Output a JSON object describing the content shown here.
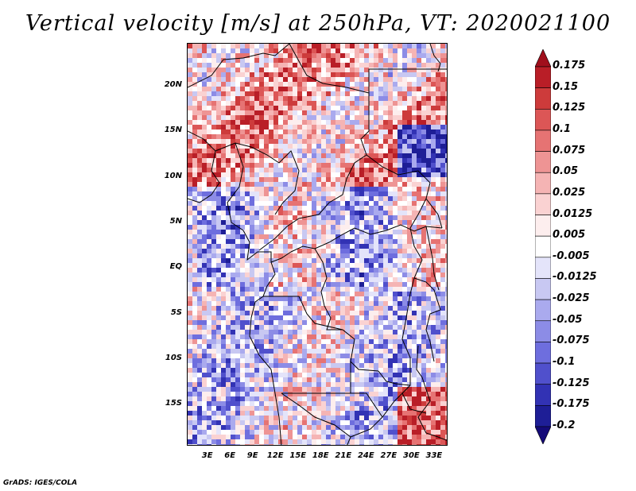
{
  "title": "Vertical velocity [m/s] at 250hPa, VT: 2020021100",
  "credit": "GrADS: IGES/COLA",
  "map": {
    "lat_labels": [
      "20N",
      "15N",
      "10N",
      "5N",
      "EQ",
      "5S",
      "10S",
      "15S"
    ],
    "lon_labels": [
      "3E",
      "6E",
      "9E",
      "12E",
      "15E",
      "18E",
      "21E",
      "24E",
      "27E",
      "30E",
      "33E"
    ],
    "lat_values": [
      20,
      15,
      10,
      5,
      0,
      -5,
      -10,
      -15
    ],
    "lon_values": [
      3,
      6,
      9,
      12,
      15,
      18,
      21,
      24,
      27,
      30,
      33
    ],
    "lon_range": [
      0.3,
      34.8
    ],
    "lat_range": [
      -19.5,
      24.7
    ]
  },
  "colorbar": {
    "labels": [
      "0.175",
      "0.15",
      "0.125",
      "0.1",
      "0.075",
      "0.05",
      "0.025",
      "0.0125",
      "0.005",
      "-0.005",
      "-0.0125",
      "-0.025",
      "-0.05",
      "-0.075",
      "-0.1",
      "-0.125",
      "-0.175",
      "-0.2"
    ],
    "colors": [
      "#a00f1c",
      "#b91e27",
      "#cd3b3b",
      "#dc5656",
      "#e67373",
      "#ee9494",
      "#f5b4b4",
      "#fad2d2",
      "#fdeeee",
      "#ffffff",
      "#e4e4fa",
      "#c8c8f2",
      "#aaaaee",
      "#8c8ce6",
      "#6e6ede",
      "#5050cc",
      "#3232b4",
      "#1e1e96",
      "#140a78"
    ]
  }
}
